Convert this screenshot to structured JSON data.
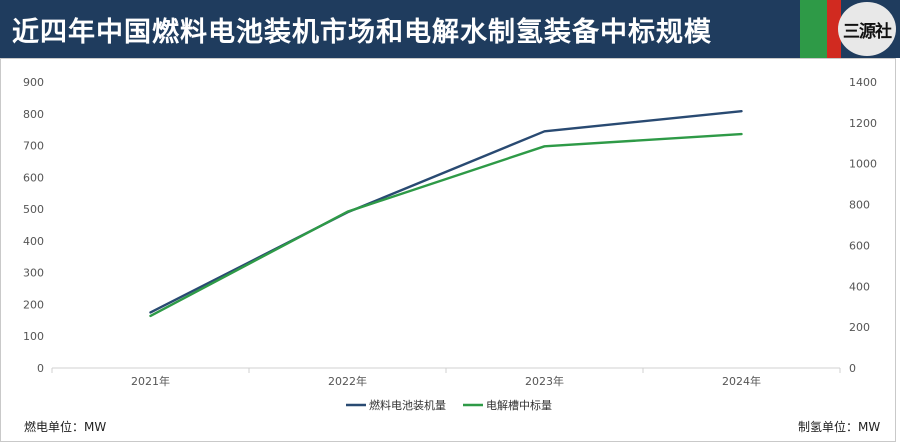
{
  "header": {
    "title": "近四年中国燃料电池装机市场和电解水制氢装备中标规模",
    "logo_text": "三源社"
  },
  "units": {
    "left": "燃电单位：MW",
    "right": "制氢单位：MW"
  },
  "colors": {
    "header_bg": "#1f3c5e",
    "accent_green": "#2e9a47",
    "accent_red": "#d12a20",
    "series_fuel_cell": "#294a72",
    "series_electrolyzer": "#2e9a47"
  },
  "chart_data": {
    "type": "line",
    "categories": [
      "2021年",
      "2022年",
      "2023年",
      "2024年"
    ],
    "series": [
      {
        "name": "燃料电池装机量",
        "axis": "left",
        "values": [
          175,
          490,
          745,
          808
        ]
      },
      {
        "name": "电解槽中标量",
        "axis": "right",
        "values": [
          255,
          765,
          1085,
          1145
        ]
      }
    ],
    "ylim_left": [
      0,
      900
    ],
    "yticks_left": [
      0,
      100,
      200,
      300,
      400,
      500,
      600,
      700,
      800,
      900
    ],
    "ylim_right": [
      0,
      1400
    ],
    "yticks_right": [
      0,
      200,
      400,
      600,
      800,
      1000,
      1200,
      1400
    ],
    "grid": false,
    "legend": "bottom"
  }
}
